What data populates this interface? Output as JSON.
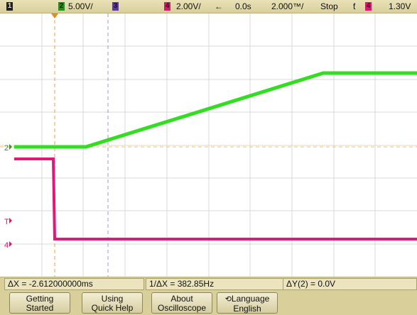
{
  "status": {
    "ch1_label": "1",
    "ch2_label": "2",
    "ch2_scale": "5.00V/",
    "ch3_label": "3",
    "ch4_label": "4",
    "ch4_scale": "2.00V/",
    "arrow": "←",
    "time_delay": "0.0s",
    "time_scale": "2.000™/",
    "run_state": "Stop",
    "trigger_symbol": "ƭ",
    "trigger_channel": "4",
    "trigger_level": "1.30V"
  },
  "markers": {
    "ch2_marker": "2",
    "trigger_marker": "T",
    "ch4_marker": "4"
  },
  "measurements": {
    "delta_x": "ΔX = -2.612000000ms",
    "inverse_delta_x": "1/ΔX = 382.85Hz",
    "delta_y": "ΔY(2) = 0.0V"
  },
  "softkeys": [
    {
      "line1": "Getting",
      "line2": "Started"
    },
    {
      "line1": "Using",
      "line2": "Quick Help"
    },
    {
      "line1": "About",
      "line2": "Oscilloscope"
    },
    {
      "line1": "Language",
      "line2": "English",
      "icon": "⟲"
    }
  ],
  "colors": {
    "ch2": "#33dd22",
    "ch4": "#e0187a",
    "cursor": "#f0a040",
    "grid": "#d8d8d8",
    "marker_cursor": "#e68a1a"
  },
  "traces": {
    "ch2_description_points": "green ramp",
    "ch4_description_points": "magenta step"
  }
}
